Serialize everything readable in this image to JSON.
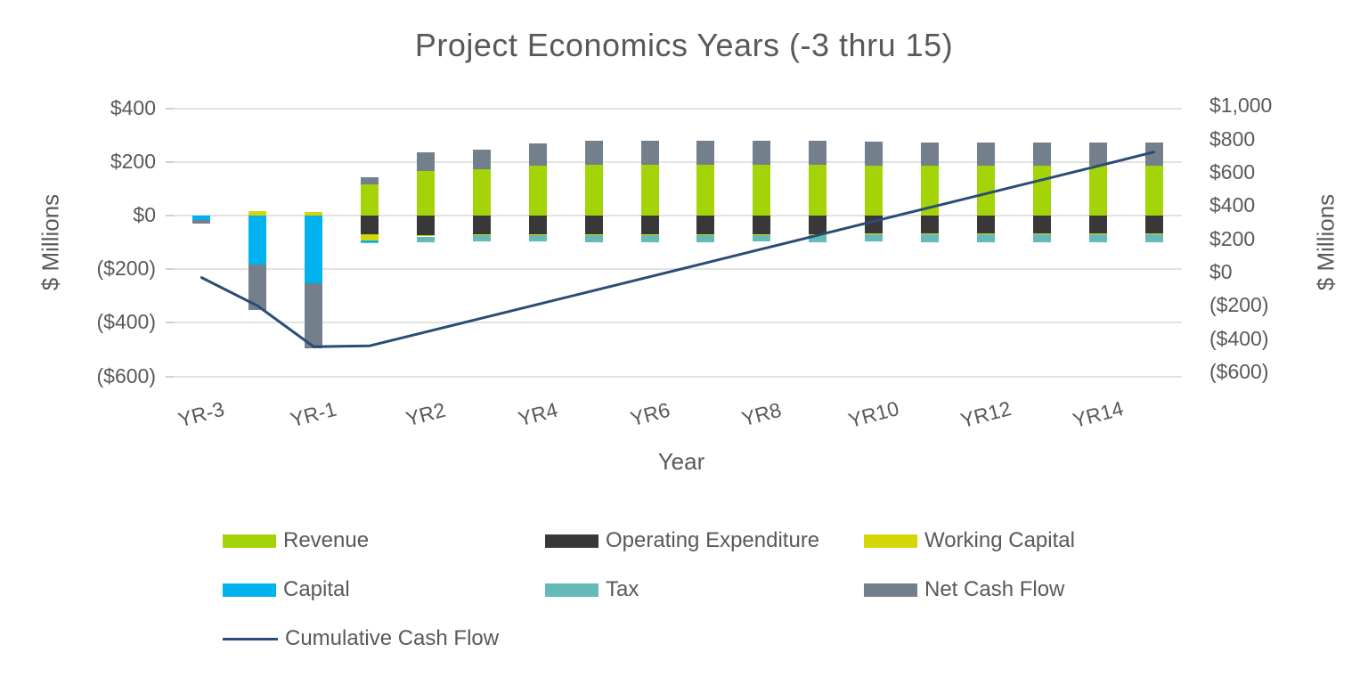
{
  "title": "Project Economics Years (-3 thru 15)",
  "left_axis": {
    "title": "$ Millions",
    "tick_labels": [
      "$400",
      "$200",
      "$0",
      "($200)",
      "($400)",
      "($600)"
    ],
    "tick_values": [
      400,
      200,
      0,
      -200,
      -400,
      -600
    ]
  },
  "right_axis": {
    "title": "$ Millions",
    "tick_labels": [
      "$1,000",
      "$800",
      "$600",
      "$400",
      "$200",
      "$0",
      "($200)",
      "($400)",
      "($600)"
    ],
    "tick_values": [
      1000,
      800,
      600,
      400,
      200,
      0,
      -200,
      -400,
      -600
    ]
  },
  "x_axis": {
    "title": "Year",
    "visible_tick_labels": [
      "YR-3",
      "YR-1",
      "YR2",
      "YR4",
      "YR6",
      "YR8",
      "YR10",
      "YR12",
      "YR14"
    ],
    "visible_tick_indices": [
      0,
      2,
      4,
      6,
      8,
      10,
      12,
      14,
      16
    ]
  },
  "legend": {
    "rows": [
      [
        {
          "label": "Revenue",
          "type": "box",
          "color": "#a4d408"
        },
        {
          "label": "Operating Expenditure",
          "type": "box",
          "color": "#383838"
        },
        {
          "label": "Working Capital",
          "type": "box",
          "color": "#d6d606"
        }
      ],
      [
        {
          "label": "Capital",
          "type": "box",
          "color": "#00b3ef"
        },
        {
          "label": "Tax",
          "type": "box",
          "color": "#64bab8"
        },
        {
          "label": "Net Cash Flow",
          "type": "box",
          "color": "#73808c"
        }
      ],
      [
        {
          "label": "Cumulative Cash Flow",
          "type": "line",
          "color": "#2b4c77"
        }
      ]
    ]
  },
  "chart_data": {
    "type": "bar",
    "subtype": "stacked-bar-with-line",
    "title": "Project Economics Years (-3 thru 15)",
    "xlabel": "Year",
    "ylabel_left": "$ Millions",
    "ylabel_right": "$ Millions",
    "left_ylim": [
      -600,
      400
    ],
    "right_ylim": [
      -600,
      1000
    ],
    "grid": "horizontal",
    "legend_position": "bottom",
    "units": "USD millions",
    "categories": [
      "YR-3",
      "YR-2",
      "YR-1",
      "YR1",
      "YR2",
      "YR3",
      "YR4",
      "YR5",
      "YR6",
      "YR7",
      "YR8",
      "YR9",
      "YR10",
      "YR11",
      "YR12",
      "YR13",
      "YR14",
      "YR15"
    ],
    "series": [
      {
        "name": "Revenue",
        "color": "#a4d408",
        "values": [
          0,
          0,
          0,
          115,
          165,
          172,
          185,
          190,
          188,
          188,
          188,
          188,
          188,
          186,
          186,
          186,
          186,
          186
        ]
      },
      {
        "name": "Operating Expenditure",
        "color": "#383838",
        "values": [
          0,
          0,
          0,
          -68,
          -74,
          -70,
          -70,
          -70,
          -70,
          -70,
          -68,
          -68,
          -65,
          -65,
          -65,
          -65,
          -65,
          -65
        ]
      },
      {
        "name": "Working Capital",
        "color": "#d6d606",
        "values": [
          0,
          17,
          12,
          -26,
          -4,
          -4,
          -4,
          -4,
          -4,
          -4,
          -4,
          -4,
          -4,
          -4,
          -4,
          -4,
          -4,
          -4
        ]
      },
      {
        "name": "Capital",
        "color": "#00b3ef",
        "values": [
          -18,
          -184,
          -254,
          -6,
          0,
          0,
          0,
          0,
          0,
          0,
          0,
          0,
          0,
          0,
          0,
          0,
          0,
          0
        ]
      },
      {
        "name": "Tax",
        "color": "#64bab8",
        "values": [
          0,
          0,
          0,
          -2,
          -20,
          -24,
          -24,
          -25,
          -25,
          -25,
          -25,
          -27,
          -28,
          -30,
          -30,
          -30,
          -30,
          -30
        ]
      },
      {
        "name": "Net Cash Flow",
        "color": "#73808c",
        "values": [
          -12,
          -168,
          -240,
          28,
          70,
          74,
          86,
          90,
          90,
          90,
          90,
          90,
          88,
          86,
          86,
          86,
          86,
          86
        ]
      }
    ],
    "line_series": {
      "name": "Cumulative Cash Flow",
      "color": "#2b4c77",
      "axis": "right",
      "values": [
        -30,
        -200,
        -445,
        -440,
        -357,
        -274,
        -191,
        -108,
        -25,
        58,
        141,
        224,
        308,
        391,
        474,
        557,
        640,
        724
      ]
    }
  }
}
